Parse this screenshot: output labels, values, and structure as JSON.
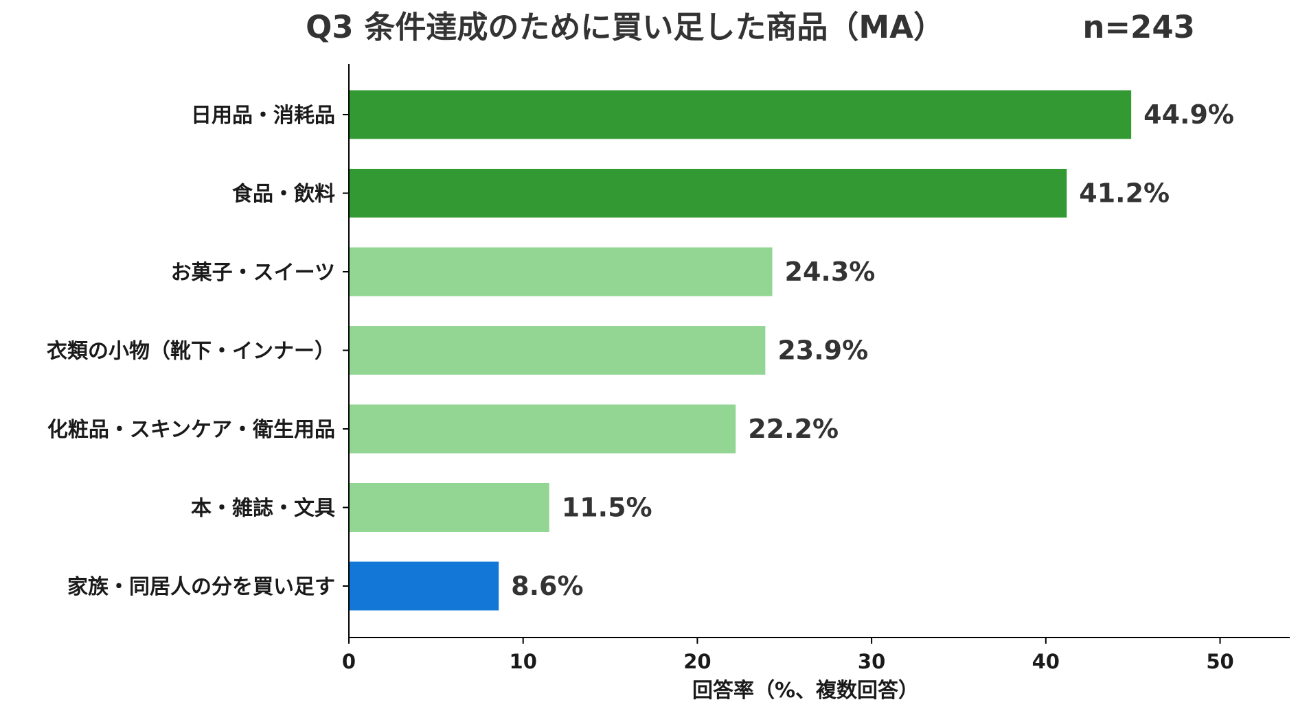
{
  "chart_data": {
    "type": "bar",
    "orientation": "horizontal",
    "title": "Q3 条件達成のために買い足した商品（MA）",
    "subtitle": "n=243",
    "xlabel": "回答率（%、複数回答）",
    "ylabel": "",
    "xlim": [
      0,
      54
    ],
    "xticks": [
      0,
      10,
      20,
      30,
      40,
      50
    ],
    "grid": false,
    "categories": [
      "日用品・消耗品",
      "食品・飲料",
      "お菓子・スイーツ",
      "衣類の小物（靴下・インナー）",
      "化粧品・スキンケア・衛生用品",
      "本・雑誌・文具",
      "家族・同居人の分を買い足す"
    ],
    "values": [
      44.9,
      41.2,
      24.3,
      23.9,
      22.2,
      11.5,
      8.6
    ],
    "value_labels": [
      "44.9%",
      "41.2%",
      "24.3%",
      "23.9%",
      "22.2%",
      "11.5%",
      "8.6%"
    ],
    "bar_colors": [
      "#339933",
      "#339933",
      "#93d694",
      "#93d694",
      "#93d694",
      "#93d694",
      "#1277d6"
    ]
  }
}
